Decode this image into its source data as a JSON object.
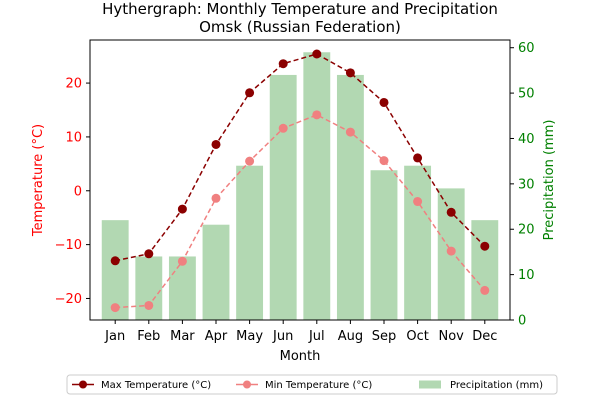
{
  "chart_data": {
    "type": "bar+line",
    "title_line1": "Hythergraph: Monthly Temperature and Precipitation",
    "title_line2": "Omsk (Russian Federation)",
    "xlabel": "Month",
    "ylabel_left": "Temperature (°C)",
    "ylabel_right": "Precipitation (mm)",
    "categories": [
      "Jan",
      "Feb",
      "Mar",
      "Apr",
      "May",
      "Jun",
      "Jul",
      "Aug",
      "Sep",
      "Oct",
      "Nov",
      "Dec"
    ],
    "ylim_left": [
      -24,
      28
    ],
    "yticks_left": [
      -20,
      -10,
      0,
      10,
      20
    ],
    "ylim_right": [
      0,
      61.7
    ],
    "yticks_right": [
      0,
      10,
      20,
      30,
      40,
      50,
      60
    ],
    "grid": false,
    "legend_position": "bottom",
    "series": [
      {
        "name": "Max Temperature (°C)",
        "kind": "line",
        "axis": "left",
        "color": "#8b0000",
        "values": [
          -13,
          -11.7,
          -3.4,
          8.6,
          18.2,
          23.6,
          25.4,
          21.9,
          16.4,
          6.1,
          -4,
          -10.3
        ]
      },
      {
        "name": "Min Temperature (°C)",
        "kind": "line",
        "axis": "left",
        "color": "#f08080",
        "values": [
          -21.7,
          -21.3,
          -13.1,
          -1.4,
          5.5,
          11.6,
          14.1,
          10.9,
          5.6,
          -2,
          -11.2,
          -18.5
        ]
      },
      {
        "name": "Precipitation (mm)",
        "kind": "bar",
        "axis": "right",
        "color": "#b2d8b2",
        "values": [
          22,
          14,
          14,
          21,
          34,
          54,
          59,
          54,
          33,
          34,
          29,
          22
        ]
      }
    ]
  }
}
